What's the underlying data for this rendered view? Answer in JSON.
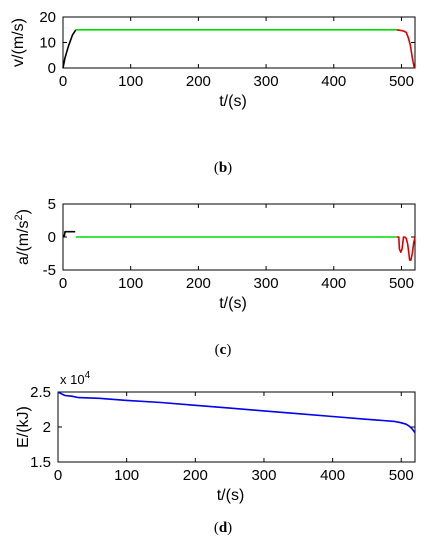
{
  "chart_data": [
    {
      "type": "line",
      "caption": {
        "open": "(",
        "letter": "b",
        "close": ")"
      },
      "xlabel": "t/(s)",
      "ylabel": "v/(m/s)",
      "xlim": [
        0,
        520
      ],
      "ylim": [
        0,
        20
      ],
      "xticks": [
        0,
        100,
        200,
        300,
        400,
        500
      ],
      "yticks": [
        0,
        10,
        20
      ],
      "grid": false,
      "series": [
        {
          "color": "#000000",
          "x": [
            0,
            3,
            8,
            14,
            19
          ],
          "y": [
            0,
            4,
            8.5,
            13,
            15
          ]
        },
        {
          "color": "#00dd00",
          "x": [
            19,
            100,
            200,
            300,
            400,
            493
          ],
          "y": [
            15,
            15,
            15,
            15,
            15,
            15
          ]
        },
        {
          "color": "#dd0000",
          "x": [
            493,
            498,
            503,
            507,
            510,
            513,
            516,
            519
          ],
          "y": [
            15,
            14.8,
            14.5,
            14,
            12,
            9,
            4,
            0
          ]
        }
      ]
    },
    {
      "type": "line",
      "caption": {
        "open": "(",
        "letter": "c",
        "close": ")"
      },
      "xlabel": "t/(s)",
      "ylabel": "a/(m/s",
      "ylabel_sup": "2",
      "ylabel_tail": ")",
      "xlim": [
        0,
        520
      ],
      "ylim": [
        -5,
        5
      ],
      "xticks": [
        0,
        100,
        200,
        300,
        400,
        500
      ],
      "yticks": [
        -5,
        0,
        5
      ],
      "grid": false,
      "series": [
        {
          "color": "#000000",
          "x": [
            0,
            2,
            3,
            10,
            18
          ],
          "y": [
            0.2,
            0.2,
            0.8,
            0.8,
            0.8
          ]
        },
        {
          "color": "#00dd00",
          "x": [
            19,
            100,
            200,
            300,
            400,
            493
          ],
          "y": [
            0,
            0,
            0,
            0,
            0,
            0
          ]
        },
        {
          "color": "#dd0000",
          "x": [
            493,
            496,
            497,
            499,
            501,
            503,
            505,
            507,
            509,
            511,
            512,
            514,
            516,
            518,
            520
          ],
          "y": [
            0,
            0,
            -1.8,
            -2.3,
            -1.8,
            0,
            0,
            -0.2,
            -1,
            -2.5,
            -3.5,
            -3.5,
            -2.5,
            -1,
            0
          ]
        }
      ]
    },
    {
      "type": "line",
      "caption": {
        "open": "(",
        "letter": "d",
        "close": ")"
      },
      "xlabel": "t/(s)",
      "ylabel": "E/(kJ)",
      "multiplier": "x 10",
      "multiplier_sup": "4",
      "xlim": [
        0,
        520
      ],
      "ylim": [
        1.5,
        2.5
      ],
      "xticks": [
        0,
        100,
        200,
        300,
        400,
        500
      ],
      "yticks": [
        1.5,
        2,
        2.5
      ],
      "grid": false,
      "series": [
        {
          "color": "#0000ee",
          "x": [
            0,
            4,
            10,
            20,
            30,
            60,
            100,
            150,
            200,
            250,
            300,
            350,
            400,
            450,
            490,
            500,
            507,
            512,
            516,
            520
          ],
          "y": [
            2.5,
            2.48,
            2.45,
            2.44,
            2.42,
            2.41,
            2.38,
            2.35,
            2.31,
            2.27,
            2.23,
            2.19,
            2.15,
            2.11,
            2.08,
            2.06,
            2.04,
            2.01,
            1.97,
            1.92
          ]
        }
      ]
    }
  ]
}
